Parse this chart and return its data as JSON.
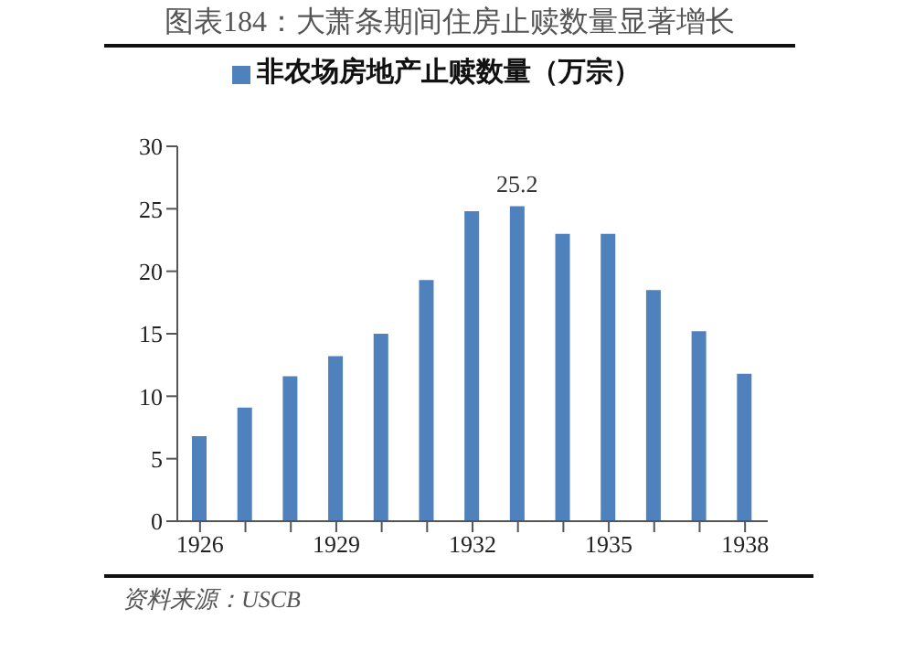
{
  "chart_data": {
    "type": "bar",
    "title": "图表184：大萧条期间住房止赎数量显著增长",
    "categories": [
      "1926",
      null,
      null,
      "1929",
      null,
      null,
      "1932",
      null,
      null,
      "1935",
      null,
      null,
      "1938"
    ],
    "series": [
      {
        "name": "非农场房地产止赎数量（万宗）",
        "color": "#4f81bd",
        "values": [
          6.8,
          9.1,
          11.6,
          13.2,
          15.0,
          19.3,
          24.8,
          25.2,
          23.0,
          23.0,
          18.5,
          15.2,
          11.8
        ],
        "value_labels": [
          null,
          null,
          null,
          null,
          null,
          null,
          null,
          "25.2",
          null,
          null,
          null,
          null,
          null
        ]
      }
    ],
    "ylim": [
      0,
      30
    ],
    "yticks": [
      0,
      5,
      10,
      15,
      20,
      25,
      30
    ],
    "grid": false,
    "legend": "top",
    "annotations": [
      "资料来源：USCB"
    ]
  }
}
